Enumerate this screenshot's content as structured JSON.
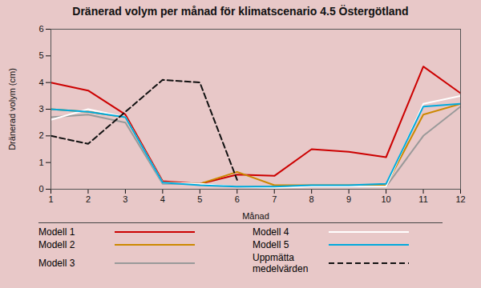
{
  "chart_data": {
    "type": "line",
    "title": "Dränerad volym per månad för klimatscenario 4.5 Östergötland",
    "xlabel": "Månad",
    "ylabel": "Dränerad volym (cm)",
    "x": [
      1,
      2,
      3,
      4,
      5,
      6,
      7,
      8,
      9,
      10,
      11,
      12
    ],
    "series": [
      {
        "name": "Modell 1",
        "color": "#cc0000",
        "line_style": "solid",
        "values": [
          4.0,
          3.7,
          2.8,
          0.3,
          0.2,
          0.55,
          0.5,
          1.5,
          1.4,
          1.2,
          4.6,
          3.6
        ]
      },
      {
        "name": "Modell 2",
        "color": "#cc8800",
        "line_style": "solid",
        "values": [
          3.0,
          2.9,
          2.7,
          0.25,
          0.2,
          0.65,
          0.15,
          0.15,
          0.15,
          0.15,
          2.8,
          3.2
        ]
      },
      {
        "name": "Modell 3",
        "color": "#999999",
        "line_style": "solid",
        "values": [
          2.7,
          2.8,
          2.5,
          0.2,
          0.2,
          0.1,
          0.1,
          0.1,
          0.1,
          0.1,
          2.0,
          3.1
        ]
      },
      {
        "name": "Modell 4",
        "color": "#ffffff",
        "line_style": "solid",
        "values": [
          2.6,
          3.0,
          2.7,
          0.25,
          0.2,
          0.1,
          0.05,
          0.1,
          0.1,
          0.1,
          3.2,
          3.5
        ]
      },
      {
        "name": "Modell 5",
        "color": "#00aadd",
        "line_style": "solid",
        "values": [
          3.0,
          2.9,
          2.7,
          0.25,
          0.15,
          0.1,
          0.1,
          0.15,
          0.15,
          0.2,
          3.1,
          3.2
        ]
      },
      {
        "name": "Uppmätta\nmedelvärden",
        "color": "#111111",
        "line_style": "dashed",
        "values": [
          2.0,
          1.7,
          2.9,
          4.1,
          4.0,
          0.35,
          null,
          null,
          null,
          null,
          null,
          null
        ]
      }
    ],
    "xlim": [
      1,
      12
    ],
    "xticks": [
      1,
      2,
      3,
      4,
      5,
      6,
      7,
      8,
      9,
      10,
      11,
      12
    ],
    "ylim": [
      0,
      6
    ],
    "yticks": [
      0,
      1,
      2,
      3,
      4,
      5,
      6
    ],
    "grid": false,
    "legend": "bottom"
  }
}
